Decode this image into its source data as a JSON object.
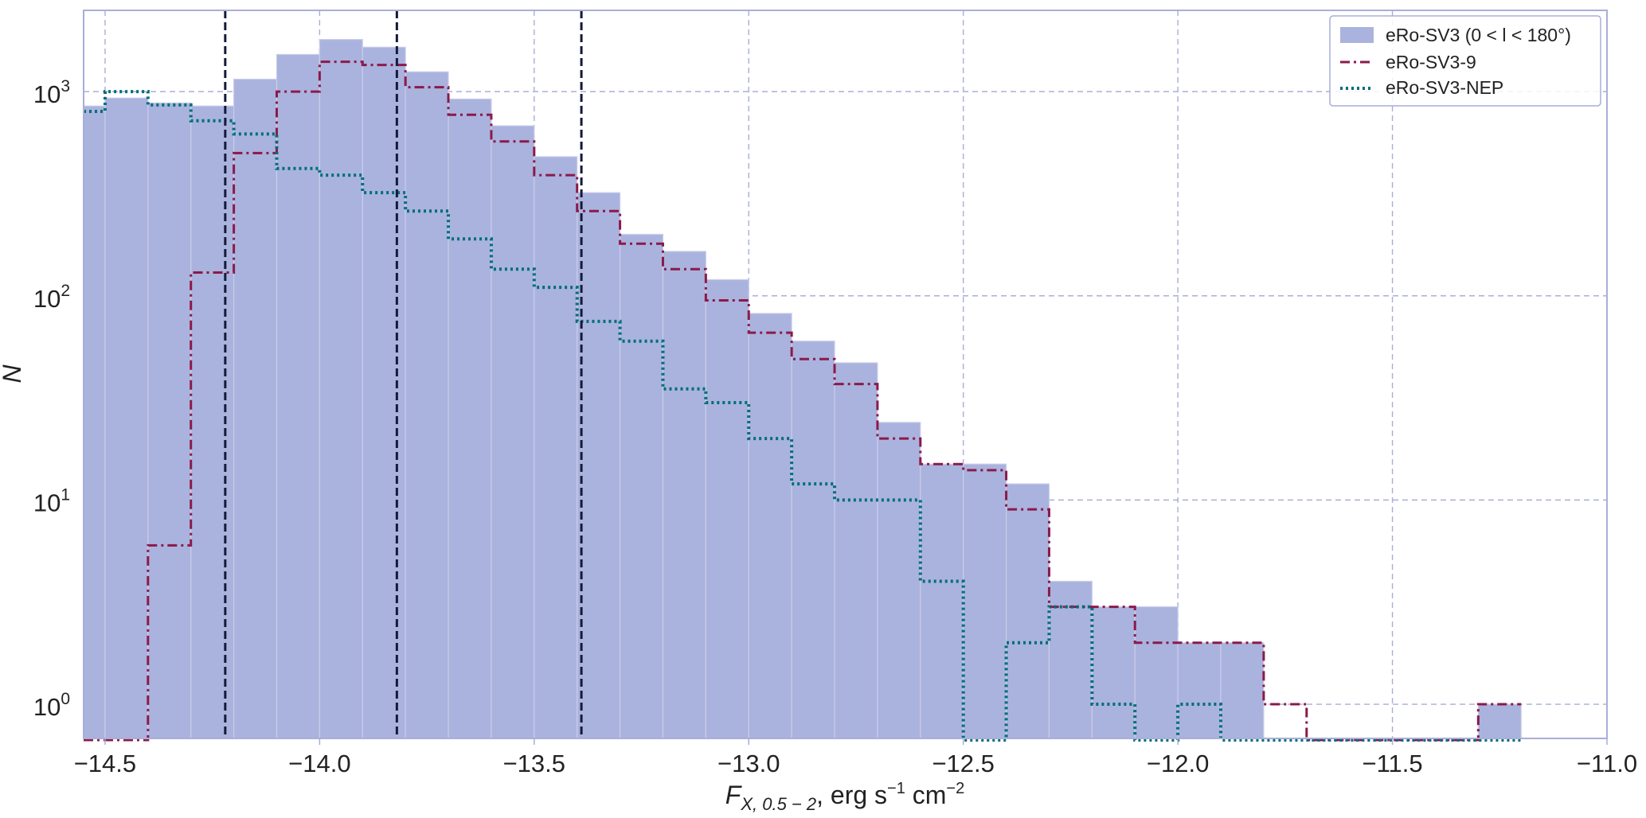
{
  "chart_data": {
    "type": "histogram",
    "xlabel_parts": {
      "f": "F",
      "sub": "X, 0.5 − 2",
      "rest": ", erg s",
      "exp1": "−1",
      "cm": " cm",
      "exp2": "−2"
    },
    "ylabel": "N",
    "xlim": [
      -14.55,
      -11.0
    ],
    "ylim": [
      0.68,
      2500
    ],
    "yscale": "log",
    "grid": true,
    "legend_position": "top-right",
    "x_ticks": [
      {
        "value": -14.5,
        "label": "−14.5"
      },
      {
        "value": -14.0,
        "label": "−14.0"
      },
      {
        "value": -13.5,
        "label": "−13.5"
      },
      {
        "value": -13.0,
        "label": "−13.0"
      },
      {
        "value": -12.5,
        "label": "−12.5"
      },
      {
        "value": -12.0,
        "label": "−12.0"
      },
      {
        "value": -11.5,
        "label": "−11.5"
      },
      {
        "value": -11.0,
        "label": "−11.0"
      }
    ],
    "y_ticks": [
      {
        "value": 1,
        "base": "10",
        "exp": "0"
      },
      {
        "value": 10,
        "base": "10",
        "exp": "1"
      },
      {
        "value": 100,
        "base": "10",
        "exp": "2"
      },
      {
        "value": 1000,
        "base": "10",
        "exp": "3"
      }
    ],
    "vertical_lines": [
      -14.22,
      -13.82,
      -13.39
    ],
    "bin_edges": [
      -14.6,
      -14.5,
      -14.4,
      -14.3,
      -14.2,
      -14.1,
      -14.0,
      -13.9,
      -13.8,
      -13.7,
      -13.6,
      -13.5,
      -13.4,
      -13.3,
      -13.2,
      -13.1,
      -13.0,
      -12.9,
      -12.8,
      -12.7,
      -12.6,
      -12.5,
      -12.4,
      -12.3,
      -12.2,
      -12.1,
      -12.0,
      -11.9,
      -11.8,
      -11.7,
      -11.6,
      -11.5,
      -11.4,
      -11.3,
      -11.2
    ],
    "series": [
      {
        "name": "eRo-SV3 (0 < l < 180°)",
        "style": "filled-bar",
        "color": "#aab3de",
        "values": [
          850,
          930,
          880,
          850,
          1150,
          1520,
          1800,
          1650,
          1250,
          920,
          680,
          480,
          320,
          200,
          165,
          120,
          82,
          60,
          47,
          24,
          15,
          15,
          12,
          4,
          3,
          3,
          2,
          2,
          0,
          0,
          0,
          0,
          0,
          1
        ]
      },
      {
        "name": "eRo-SV3-9",
        "style": "step-dashdot",
        "color": "#8b1a4a",
        "values": [
          0,
          0,
          6,
          130,
          500,
          1000,
          1400,
          1350,
          1050,
          770,
          570,
          390,
          260,
          180,
          135,
          95,
          66,
          49,
          37,
          20,
          15,
          14,
          9,
          3,
          3,
          2,
          2,
          2,
          1,
          0,
          0,
          0,
          0,
          1
        ]
      },
      {
        "name": "eRo-SV3-NEP",
        "style": "step-dotted",
        "color": "#006e78",
        "values": [
          800,
          1000,
          860,
          720,
          620,
          420,
          390,
          320,
          260,
          190,
          135,
          110,
          75,
          60,
          35,
          30,
          20,
          12,
          10,
          10,
          4,
          0,
          2,
          3,
          1,
          0,
          1,
          0,
          0,
          0,
          0,
          0,
          0,
          0
        ]
      }
    ]
  }
}
